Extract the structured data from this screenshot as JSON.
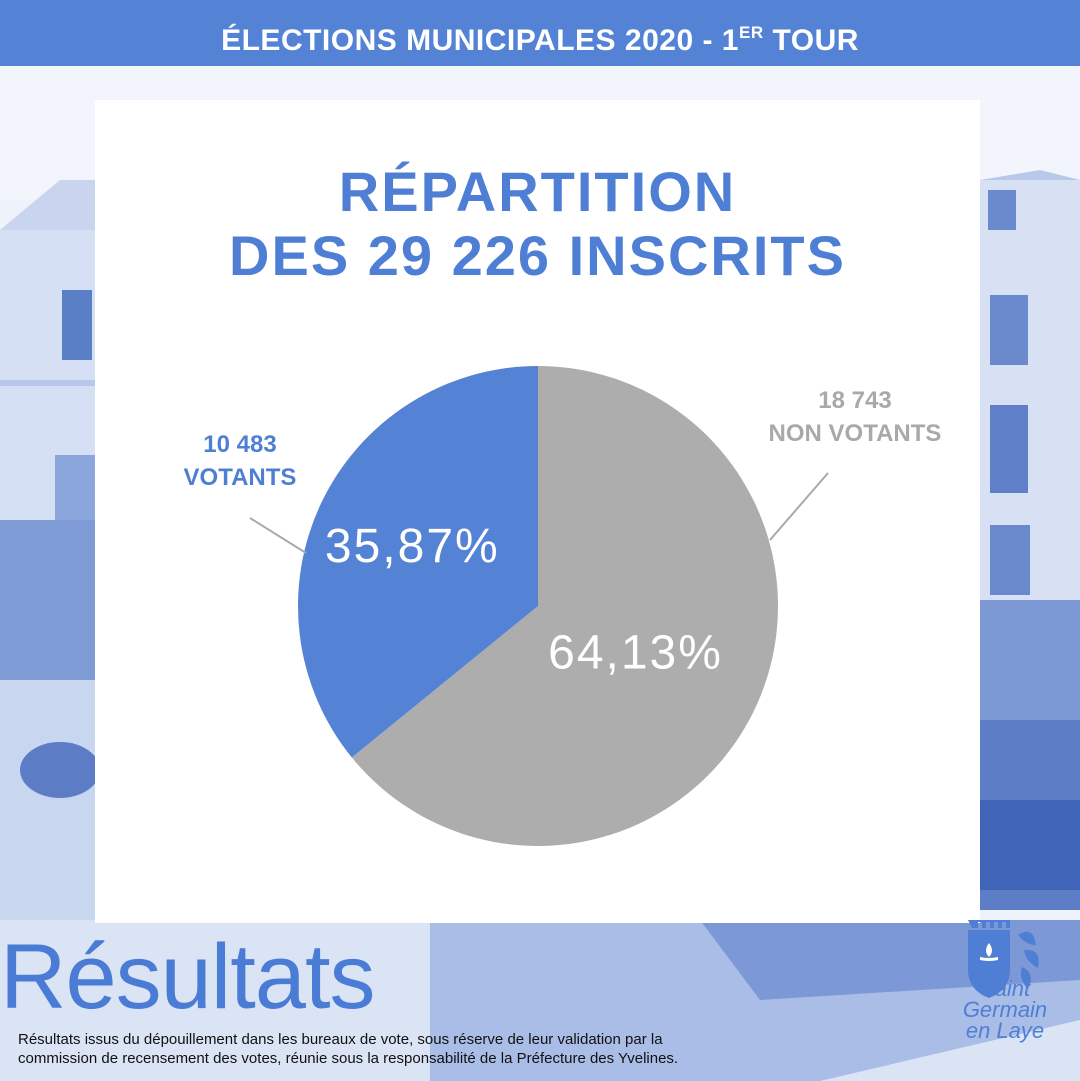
{
  "header": {
    "title_main": "ÉLECTIONS MUNICIPALES 2020 - 1",
    "title_sup": "ER",
    "title_end": " TOUR"
  },
  "colors": {
    "accent": "#5483d6",
    "votants": "#5483d6",
    "non_votants": "#adadad",
    "title": "#4f7fd4"
  },
  "chart_data": {
    "type": "pie",
    "title_line1": "RÉPARTITION",
    "title_line2": "DES 29 226 INSCRITS",
    "slices": [
      {
        "key": "non_votants",
        "count_label": "18 743",
        "name": "NON VOTANTS",
        "value": 64.13,
        "value_label": "64,13%"
      },
      {
        "key": "votants",
        "count_label": "10 483",
        "name": "VOTANTS",
        "value": 35.87,
        "value_label": "35,87%"
      }
    ]
  },
  "footer": {
    "heading": "Résultats",
    "note_line1": "Résultats issus du dépouillement dans les bureaux de vote, sous réserve de leur validation par la",
    "note_line2": "commission de recensement des votes, réunie sous la responsabilité de la Préfecture des Yvelines."
  },
  "logo": {
    "line1": "Saint",
    "line2": "Germain",
    "line3": "en Laye"
  }
}
